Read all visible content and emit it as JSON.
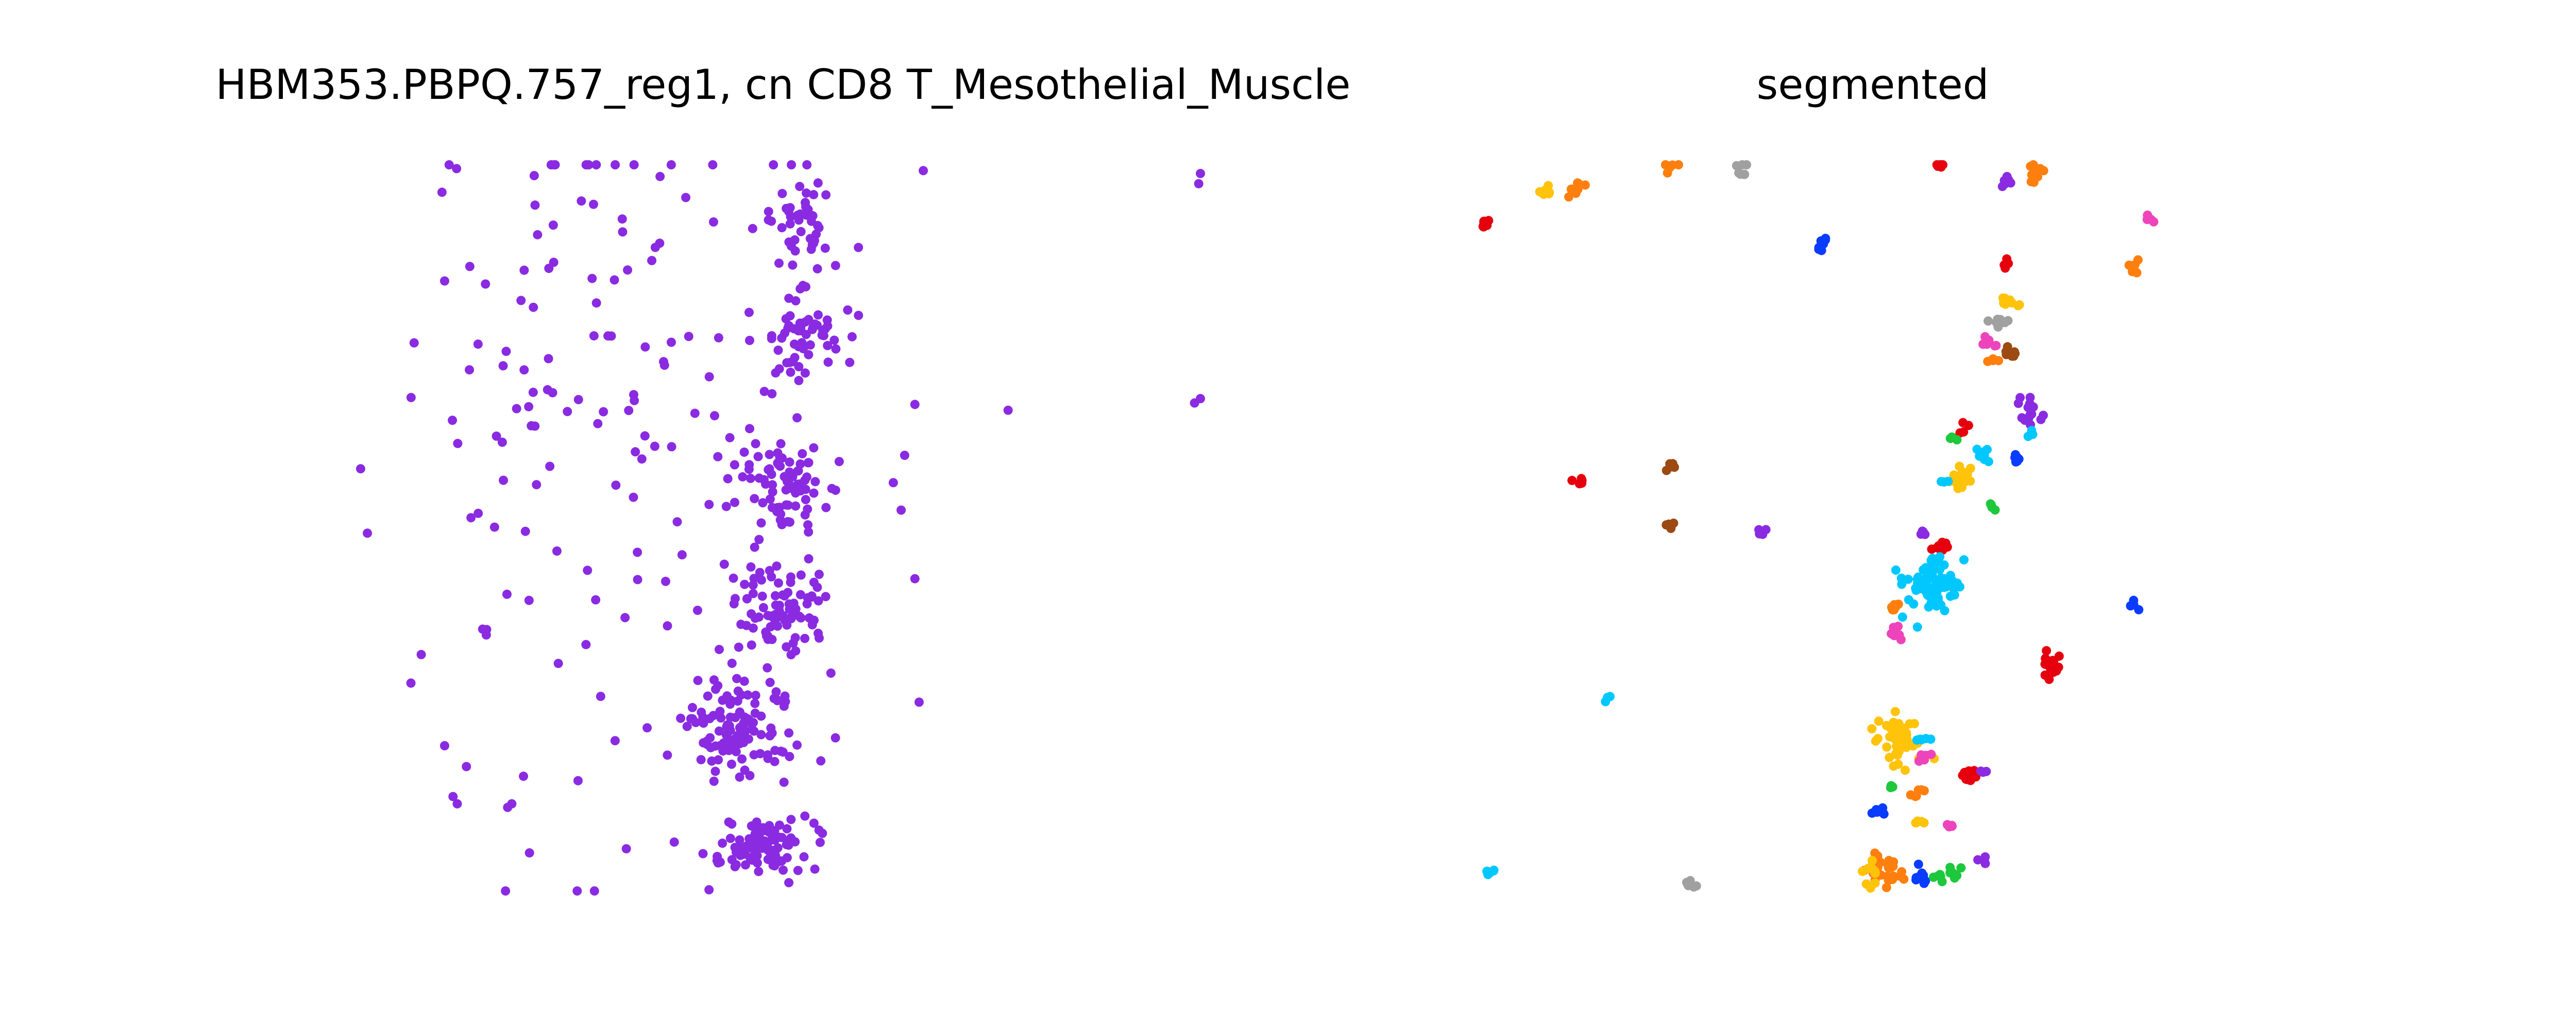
{
  "figure": {
    "panels": [
      {
        "title": "HBM353.PBPQ.757_reg1, cn CD8 T_Mesothelial_Muscle"
      },
      {
        "title": "segmented"
      }
    ]
  },
  "chart_data": [
    {
      "type": "scatter",
      "title": "HBM353.PBPQ.757_reg1, cn CD8 T_Mesothelial_Muscle",
      "xlabel": "",
      "ylabel": "",
      "axes_visible": false,
      "grid": false,
      "xlim": [
        0,
        1000
      ],
      "ylim": [
        0,
        1000
      ],
      "y_inverted": true,
      "point_color": "#8a2be2",
      "clusters": [
        {
          "cx": 480,
          "cy": 935,
          "sx": 30,
          "sy": 18,
          "n": 90
        },
        {
          "cx": 455,
          "cy": 780,
          "sx": 35,
          "sy": 35,
          "n": 110
        },
        {
          "cx": 495,
          "cy": 610,
          "sx": 25,
          "sy": 35,
          "n": 80
        },
        {
          "cx": 505,
          "cy": 440,
          "sx": 25,
          "sy": 28,
          "n": 70
        },
        {
          "cx": 525,
          "cy": 240,
          "sx": 25,
          "sy": 28,
          "n": 55
        },
        {
          "cx": 520,
          "cy": 80,
          "sx": 25,
          "sy": 35,
          "n": 45
        },
        {
          "cx": 360,
          "cy": 380,
          "sx": 110,
          "sy": 300,
          "n": 120
        },
        {
          "cx": 190,
          "cy": 330,
          "sx": 85,
          "sy": 230,
          "n": 40
        }
      ],
      "singles": [
        [
          670,
          8
        ],
        [
          1000,
          12
        ],
        [
          998,
          26
        ],
        [
          1000,
          322
        ],
        [
          993,
          328
        ],
        [
          660,
          330
        ],
        [
          771,
          338
        ],
        [
          580,
          200
        ],
        [
          660,
          570
        ],
        [
          665,
          740
        ],
        [
          560,
          700
        ],
        [
          130,
          140
        ],
        [
          140,
          480
        ],
        [
          150,
          640
        ],
        [
          100,
          160
        ],
        [
          100,
          800
        ],
        [
          110,
          870
        ],
        [
          115,
          880
        ],
        [
          180,
          880
        ],
        [
          175,
          885
        ]
      ]
    },
    {
      "type": "scatter",
      "title": "segmented",
      "xlabel": "",
      "ylabel": "",
      "axes_visible": false,
      "grid": false,
      "xlim": [
        0,
        1000
      ],
      "ylim": [
        0,
        1000
      ],
      "y_inverted": true,
      "palette": {
        "red": "#e6000e",
        "orange": "#ff7f0e",
        "gray": "#a0a0a0",
        "pink": "#ee44bb",
        "brown": "#9c4a12",
        "gold": "#ffc30a",
        "blue": "#0a3cff",
        "cyan": "#00c8ff",
        "purple": "#8a2be2",
        "green": "#1ec83c"
      },
      "segments": [
        {
          "color": "red",
          "cx": 15,
          "cy": 75,
          "sx": 6,
          "sy": 5,
          "n": 8
        },
        {
          "color": "gold",
          "cx": 92,
          "cy": 38,
          "sx": 4,
          "sy": 4,
          "n": 6
        },
        {
          "color": "orange",
          "cx": 130,
          "cy": 30,
          "sx": 7,
          "sy": 5,
          "n": 12
        },
        {
          "color": "orange",
          "cx": 240,
          "cy": 0,
          "sx": 5,
          "sy": 4,
          "n": 8
        },
        {
          "color": "gray",
          "cx": 325,
          "cy": 5,
          "sx": 3,
          "sy": 6,
          "n": 7
        },
        {
          "color": "blue",
          "cx": 420,
          "cy": 105,
          "sx": 3,
          "sy": 7,
          "n": 8
        },
        {
          "color": "red",
          "cx": 560,
          "cy": 0,
          "sx": 4,
          "sy": 3,
          "n": 6
        },
        {
          "color": "purple",
          "cx": 640,
          "cy": 22,
          "sx": 4,
          "sy": 3,
          "n": 6
        },
        {
          "color": "orange",
          "cx": 675,
          "cy": 10,
          "sx": 5,
          "sy": 7,
          "n": 9
        },
        {
          "color": "pink",
          "cx": 810,
          "cy": 75,
          "sx": 3,
          "sy": 3,
          "n": 4
        },
        {
          "color": "orange",
          "cx": 792,
          "cy": 140,
          "sx": 4,
          "sy": 5,
          "n": 7
        },
        {
          "color": "red",
          "cx": 638,
          "cy": 140,
          "sx": 3,
          "sy": 4,
          "n": 5
        },
        {
          "color": "gold",
          "cx": 645,
          "cy": 188,
          "sx": 7,
          "sy": 4,
          "n": 10
        },
        {
          "color": "gray",
          "cx": 630,
          "cy": 215,
          "sx": 8,
          "sy": 4,
          "n": 9
        },
        {
          "color": "pink",
          "cx": 620,
          "cy": 245,
          "sx": 5,
          "sy": 5,
          "n": 8
        },
        {
          "color": "brown",
          "cx": 645,
          "cy": 260,
          "sx": 7,
          "sy": 5,
          "n": 10
        },
        {
          "color": "orange",
          "cx": 625,
          "cy": 270,
          "sx": 3,
          "sy": 3,
          "n": 4
        },
        {
          "color": "purple",
          "cx": 670,
          "cy": 340,
          "sx": 8,
          "sy": 8,
          "n": 16
        },
        {
          "color": "cyan",
          "cx": 672,
          "cy": 370,
          "sx": 3,
          "sy": 3,
          "n": 4
        },
        {
          "color": "red",
          "cx": 590,
          "cy": 365,
          "sx": 3,
          "sy": 3,
          "n": 4
        },
        {
          "color": "green",
          "cx": 578,
          "cy": 375,
          "sx": 3,
          "sy": 3,
          "n": 3
        },
        {
          "color": "cyan",
          "cx": 610,
          "cy": 400,
          "sx": 6,
          "sy": 5,
          "n": 8
        },
        {
          "color": "blue",
          "cx": 655,
          "cy": 405,
          "sx": 4,
          "sy": 4,
          "n": 6
        },
        {
          "color": "gold",
          "cx": 590,
          "cy": 430,
          "sx": 7,
          "sy": 8,
          "n": 16
        },
        {
          "color": "cyan",
          "cx": 565,
          "cy": 435,
          "sx": 3,
          "sy": 3,
          "n": 3
        },
        {
          "color": "green",
          "cx": 625,
          "cy": 470,
          "sx": 4,
          "sy": 3,
          "n": 5
        },
        {
          "color": "brown",
          "cx": 240,
          "cy": 415,
          "sx": 4,
          "sy": 4,
          "n": 6
        },
        {
          "color": "red",
          "cx": 133,
          "cy": 440,
          "sx": 4,
          "sy": 3,
          "n": 5
        },
        {
          "color": "brown",
          "cx": 240,
          "cy": 500,
          "sx": 4,
          "sy": 4,
          "n": 6
        },
        {
          "color": "purple",
          "cx": 350,
          "cy": 505,
          "sx": 4,
          "sy": 3,
          "n": 5
        },
        {
          "color": "purple",
          "cx": 540,
          "cy": 505,
          "sx": 3,
          "sy": 4,
          "n": 5
        },
        {
          "color": "red",
          "cx": 565,
          "cy": 525,
          "sx": 7,
          "sy": 5,
          "n": 12
        },
        {
          "color": "cyan",
          "cx": 555,
          "cy": 580,
          "sx": 18,
          "sy": 20,
          "n": 70
        },
        {
          "color": "orange",
          "cx": 505,
          "cy": 610,
          "sx": 4,
          "sy": 3,
          "n": 6
        },
        {
          "color": "pink",
          "cx": 510,
          "cy": 645,
          "sx": 4,
          "sy": 5,
          "n": 8
        },
        {
          "color": "blue",
          "cx": 792,
          "cy": 610,
          "sx": 3,
          "sy": 3,
          "n": 4
        },
        {
          "color": "red",
          "cx": 695,
          "cy": 690,
          "sx": 5,
          "sy": 12,
          "n": 20
        },
        {
          "color": "cyan",
          "cx": 165,
          "cy": 735,
          "sx": 3,
          "sy": 3,
          "n": 3
        },
        {
          "color": "gold",
          "cx": 515,
          "cy": 790,
          "sx": 16,
          "sy": 16,
          "n": 50
        },
        {
          "color": "cyan",
          "cx": 545,
          "cy": 792,
          "sx": 4,
          "sy": 3,
          "n": 5
        },
        {
          "color": "pink",
          "cx": 545,
          "cy": 815,
          "sx": 4,
          "sy": 4,
          "n": 6
        },
        {
          "color": "red",
          "cx": 595,
          "cy": 840,
          "sx": 5,
          "sy": 5,
          "n": 10
        },
        {
          "color": "purple",
          "cx": 615,
          "cy": 835,
          "sx": 3,
          "sy": 3,
          "n": 3
        },
        {
          "color": "green",
          "cx": 503,
          "cy": 855,
          "sx": 3,
          "sy": 3,
          "n": 3
        },
        {
          "color": "orange",
          "cx": 532,
          "cy": 865,
          "sx": 5,
          "sy": 3,
          "n": 6
        },
        {
          "color": "blue",
          "cx": 490,
          "cy": 890,
          "sx": 7,
          "sy": 3,
          "n": 8
        },
        {
          "color": "gold",
          "cx": 535,
          "cy": 905,
          "sx": 5,
          "sy": 2,
          "n": 5
        },
        {
          "color": "pink",
          "cx": 575,
          "cy": 910,
          "sx": 3,
          "sy": 3,
          "n": 4
        },
        {
          "color": "orange",
          "cx": 500,
          "cy": 970,
          "sx": 12,
          "sy": 12,
          "n": 24
        },
        {
          "color": "gold",
          "cx": 480,
          "cy": 975,
          "sx": 6,
          "sy": 8,
          "n": 10
        },
        {
          "color": "blue",
          "cx": 540,
          "cy": 980,
          "sx": 5,
          "sy": 6,
          "n": 10
        },
        {
          "color": "green",
          "cx": 575,
          "cy": 975,
          "sx": 7,
          "sy": 7,
          "n": 12
        },
        {
          "color": "purple",
          "cx": 610,
          "cy": 958,
          "sx": 3,
          "sy": 2,
          "n": 4
        },
        {
          "color": "cyan",
          "cx": 25,
          "cy": 975,
          "sx": 4,
          "sy": 3,
          "n": 5
        },
        {
          "color": "gray",
          "cx": 265,
          "cy": 990,
          "sx": 4,
          "sy": 4,
          "n": 6
        }
      ]
    }
  ]
}
